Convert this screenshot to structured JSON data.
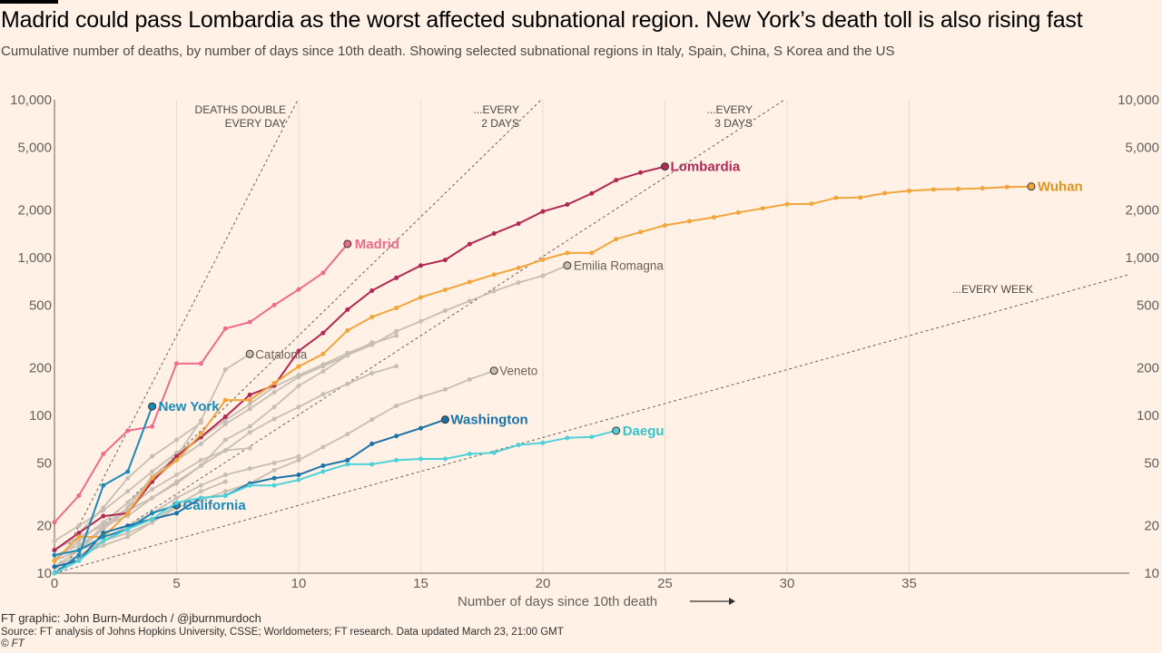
{
  "header": {
    "title": "Madrid could pass Lombardia as the worst affected subnational region. New York’s death toll is also rising fast",
    "subtitle": "Cumulative number of deaths, by number of days since 10th death. Showing selected subnational regions in Italy, Spain, China, S Korea and the US"
  },
  "footer": {
    "credit": "FT graphic: John Burn-Murdoch / @jburnmurdoch",
    "source": "Source: FT analysis of Johns Hopkins University, CSSE; Worldometers; FT research. Data updated March 23, 21:00 GMT",
    "copyright": "© FT"
  },
  "chart_data": {
    "type": "line",
    "xlabel": "Number of days since 10th death",
    "x_ticks": [
      0,
      5,
      10,
      15,
      20,
      25,
      30,
      35
    ],
    "xlim": [
      0,
      44
    ],
    "ylim": [
      10,
      10000
    ],
    "y_scale": "log",
    "y_ticks": [
      10,
      20,
      50,
      100,
      200,
      500,
      1000,
      2000,
      5000,
      10000
    ],
    "y_tick_labels": [
      "10",
      "20",
      "50",
      "100",
      "200",
      "500",
      "1,000",
      "2,000",
      "5,000",
      "10,000"
    ],
    "grid": "vertical lines at x ticks",
    "colors": {
      "background": "#fff1e5",
      "grid": "#e9dbd0",
      "madrid": "#ee6b8b",
      "lombardia": "#b12854",
      "wuhan": "#f1a53a",
      "new_york": "#1a8ab8",
      "washington": "#1a72a8",
      "california": "#1a8ab8",
      "daegu": "#4fd1d9",
      "other": "#c9beb3",
      "label_grey": "#6b6058"
    },
    "doubling_lines": [
      {
        "label": "DEATHS DOUBLE\nEVERY DAY",
        "days": 1
      },
      {
        "label": "...EVERY\n2 DAYS",
        "days": 2
      },
      {
        "label": "...EVERY\n3 DAYS",
        "days": 3
      },
      {
        "label": "...EVERY WEEK",
        "days": 7
      }
    ],
    "series": [
      {
        "name": "Madrid",
        "color": "#ee6b8b",
        "highlight": true,
        "x": [
          0,
          1,
          2,
          3,
          4,
          5,
          6,
          7,
          8,
          9,
          10,
          11,
          12
        ],
        "y": [
          21,
          31,
          57,
          80,
          85,
          213,
          213,
          355,
          390,
          500,
          628,
          800,
          1220
        ]
      },
      {
        "name": "Lombardia",
        "color": "#b12854",
        "highlight": true,
        "x": [
          0,
          1,
          2,
          3,
          4,
          5,
          6,
          7,
          8,
          9,
          10,
          11,
          12,
          13,
          14,
          15,
          16,
          17,
          18,
          19,
          20,
          21,
          22,
          23,
          24,
          25
        ],
        "y": [
          14,
          18,
          23,
          24,
          38,
          55,
          73,
          98,
          135,
          155,
          256,
          333,
          468,
          617,
          744,
          890,
          966,
          1218,
          1420,
          1640,
          1959,
          2168,
          2550,
          3095,
          3456,
          3776
        ]
      },
      {
        "name": "Wuhan",
        "color": "#f1a53a",
        "highlight": true,
        "x": [
          0,
          1,
          2,
          3,
          4,
          5,
          6,
          7,
          8,
          9,
          10,
          11,
          12,
          13,
          14,
          15,
          16,
          17,
          18,
          19,
          20,
          21,
          22,
          23,
          24,
          25,
          26,
          27,
          28,
          29,
          30,
          31,
          32,
          33,
          34,
          35,
          36,
          37,
          38,
          39,
          40
        ],
        "y": [
          12,
          17,
          17,
          24,
          40,
          52,
          76,
          125,
          125,
          160,
          204,
          245,
          345,
          420,
          480,
          560,
          625,
          700,
          780,
          860,
          970,
          1070,
          1070,
          1310,
          1450,
          1600,
          1700,
          1800,
          1930,
          2050,
          2180,
          2190,
          2390,
          2400,
          2560,
          2650,
          2700,
          2720,
          2750,
          2800,
          2820
        ]
      },
      {
        "name": "New York",
        "color": "#1a8ab8",
        "highlight": true,
        "x": [
          0,
          1,
          2,
          3,
          4
        ],
        "y": [
          10,
          13,
          36,
          44,
          114
        ]
      },
      {
        "name": "Washington",
        "color": "#1a72a8",
        "highlight": true,
        "x": [
          0,
          1,
          2,
          3,
          4,
          5,
          6,
          7,
          8,
          9,
          10,
          11,
          12,
          13,
          14,
          15,
          16
        ],
        "y": [
          11,
          12,
          18,
          20,
          22,
          24,
          30,
          31,
          37,
          40,
          42,
          48,
          52,
          66,
          74,
          83,
          94
        ]
      },
      {
        "name": "California",
        "color": "#1a8ab8",
        "highlight": true,
        "x": [
          0,
          1,
          2,
          3,
          4,
          5
        ],
        "y": [
          13,
          14,
          17,
          19,
          24,
          27
        ]
      },
      {
        "name": "Daegu",
        "color": "#4fd1d9",
        "highlight": true,
        "x": [
          0,
          1,
          2,
          3,
          4,
          5,
          6,
          7,
          8,
          9,
          10,
          11,
          12,
          13,
          14,
          15,
          16,
          17,
          18,
          19,
          20,
          21,
          22,
          23
        ],
        "y": [
          10,
          12,
          16,
          19,
          22,
          28,
          30,
          31,
          36,
          36,
          39,
          44,
          49,
          49,
          52,
          53,
          53,
          57,
          58,
          65,
          67,
          72,
          73,
          80
        ]
      },
      {
        "name": "Emilia Romagna",
        "color": "#c9beb3",
        "highlight": false,
        "x": [
          0,
          1,
          2,
          3,
          4,
          5,
          6,
          7,
          8,
          9,
          10,
          11,
          12,
          13,
          14,
          15,
          16,
          17,
          18,
          19,
          20,
          21
        ],
        "y": [
          14,
          17,
          20,
          23,
          30,
          37,
          48,
          70,
          85,
          113,
          154,
          190,
          241,
          280,
          341,
          395,
          461,
          531,
          613,
          694,
          767,
          891
        ]
      },
      {
        "name": "Catalonia",
        "color": "#c9beb3",
        "highlight": false,
        "x": [
          0,
          1,
          2,
          3,
          4,
          5,
          6,
          7,
          8
        ],
        "y": [
          12,
          14,
          19,
          26,
          41,
          55,
          93,
          195,
          245
        ]
      },
      {
        "name": "Veneto",
        "color": "#c9beb3",
        "highlight": false,
        "x": [
          0,
          1,
          2,
          3,
          4,
          5,
          6,
          7,
          8,
          9,
          10,
          11,
          12,
          13,
          14,
          15,
          16,
          17,
          18
        ],
        "y": [
          12,
          14,
          16,
          18,
          21,
          26,
          29,
          33,
          37,
          45,
          52,
          63,
          76,
          94,
          115,
          131,
          146,
          169,
          192
        ]
      },
      {
        "color": "#c9beb3",
        "highlight": false,
        "x": [
          0,
          1,
          2,
          3,
          4,
          5,
          6,
          7,
          8,
          9,
          10,
          11,
          12,
          13,
          14
        ],
        "y": [
          16,
          20,
          25,
          33,
          44,
          58,
          72,
          93,
          118,
          152,
          180,
          210,
          248,
          285,
          320
        ]
      },
      {
        "color": "#c9beb3",
        "highlight": false,
        "x": [
          0,
          1,
          2,
          3,
          4,
          5,
          6,
          7,
          8,
          9,
          10,
          11,
          12,
          13,
          14
        ],
        "y": [
          13,
          15,
          19,
          25,
          30,
          38,
          48,
          60,
          78,
          95,
          113,
          136,
          158,
          185,
          205
        ]
      },
      {
        "color": "#c9beb3",
        "highlight": false,
        "x": [
          0,
          1,
          2,
          3,
          4,
          5,
          6,
          7,
          8,
          9,
          10
        ],
        "y": [
          10,
          13,
          16,
          20,
          24,
          30,
          36,
          42,
          46,
          50,
          55
        ]
      },
      {
        "color": "#c9beb3",
        "highlight": false,
        "x": [
          0,
          1,
          2,
          3,
          4,
          5,
          6,
          7,
          8,
          9,
          10,
          11,
          12,
          13
        ],
        "y": [
          12,
          16,
          21,
          28,
          38,
          52,
          66,
          88,
          110,
          140,
          175,
          205,
          240,
          290
        ]
      },
      {
        "color": "#c9beb3",
        "highlight": false,
        "x": [
          0,
          1,
          2,
          3,
          4,
          5,
          6,
          7,
          8
        ],
        "y": [
          11,
          14,
          20,
          26,
          34,
          42,
          52,
          60,
          62
        ]
      },
      {
        "color": "#c9beb3",
        "highlight": false,
        "x": [
          0,
          1,
          2,
          3,
          4,
          5,
          6
        ],
        "y": [
          14,
          18,
          26,
          40,
          55,
          70,
          90
        ]
      },
      {
        "color": "#c9beb3",
        "highlight": false,
        "x": [
          0,
          1,
          2,
          3,
          4,
          5,
          6,
          7
        ],
        "y": [
          11,
          13,
          15,
          17,
          21,
          27,
          33,
          38
        ]
      }
    ]
  }
}
